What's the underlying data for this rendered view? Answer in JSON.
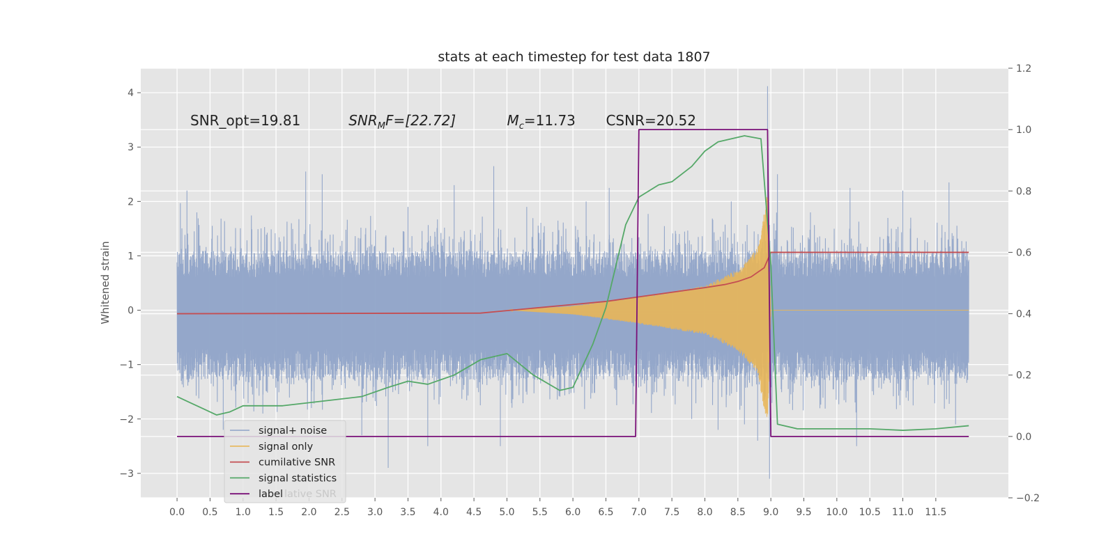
{
  "chart_data": {
    "type": "line",
    "title": "stats at each timestep for test data 1807",
    "ylabel": "Whitened strain",
    "xlim": [
      -0.55,
      12.6
    ],
    "ylim": [
      -3.45,
      4.45
    ],
    "y2lim": [
      -0.2,
      1.2
    ],
    "x_ticks": [
      "0.0",
      "0.5",
      "1.0",
      "1.5",
      "2.0",
      "2.5",
      "3.0",
      "3.5",
      "4.0",
      "4.5",
      "5.0",
      "5.5",
      "6.0",
      "6.5",
      "7.0",
      "7.5",
      "8.0",
      "8.5",
      "9.0",
      "9.5",
      "10.0",
      "10.5",
      "11.0",
      "11.5"
    ],
    "y_ticks": [
      -3,
      -2,
      -1,
      0,
      1,
      2,
      3,
      4
    ],
    "y_tick_labels": [
      "−3",
      "−2",
      "−1",
      "0",
      "1",
      "2",
      "3",
      "4"
    ],
    "y2_ticks": [
      -0.2,
      0.0,
      0.2,
      0.4,
      0.6,
      0.8,
      1.0,
      1.2
    ],
    "y2_tick_labels": [
      "−0.2",
      "0.0",
      "0.2",
      "0.4",
      "0.6",
      "0.8",
      "1.0",
      "1.2"
    ],
    "grid": true,
    "legend_position": "bottom-left",
    "annotations": [
      {
        "text": "SNR_opt=19.81",
        "x": 0.2,
        "y": 3.4
      },
      {
        "text": "SNR",
        "sub": "M",
        "suffix": "F=[22.72]",
        "x": 2.6,
        "y": 3.4,
        "italic": true
      },
      {
        "text": "M",
        "sub": "c",
        "suffix": "=11.73",
        "x": 5.0,
        "y": 3.4,
        "italic": true
      },
      {
        "text": "CSNR=20.52",
        "x": 6.5,
        "y": 3.4
      }
    ],
    "series": [
      {
        "name": "signal+ noise",
        "axis": "left",
        "color": "#8fa3c8",
        "style": "noise",
        "x_range": [
          0.0,
          12.0
        ],
        "typical_range": [
          -1.3,
          1.1
        ],
        "peaks": [
          [
            0.05,
            1.97
          ],
          [
            0.15,
            2.2
          ],
          [
            0.3,
            1.8
          ],
          [
            0.7,
            -2.2
          ],
          [
            1.3,
            -1.9
          ],
          [
            1.95,
            2.55
          ],
          [
            2.2,
            2.5
          ],
          [
            2.8,
            -2.3
          ],
          [
            3.2,
            -2.9
          ],
          [
            3.5,
            1.9
          ],
          [
            3.8,
            -2.5
          ],
          [
            4.2,
            2.3
          ],
          [
            4.8,
            2.65
          ],
          [
            4.9,
            -2.5
          ],
          [
            5.3,
            1.9
          ],
          [
            6.2,
            2.0
          ],
          [
            6.55,
            2.25
          ],
          [
            7.8,
            -2.0
          ],
          [
            8.2,
            -2.2
          ],
          [
            8.4,
            2.0
          ],
          [
            8.6,
            -2.1
          ],
          [
            8.8,
            -2.4
          ],
          [
            8.95,
            4.12
          ],
          [
            8.98,
            -3.1
          ],
          [
            9.1,
            2.5
          ],
          [
            9.6,
            1.8
          ],
          [
            10.2,
            2.25
          ],
          [
            10.3,
            -2.5
          ],
          [
            11.0,
            2.2
          ],
          [
            11.7,
            2.35
          ],
          [
            11.8,
            -2.1
          ]
        ]
      },
      {
        "name": "signal only",
        "axis": "left",
        "color": "#e8b658",
        "style": "chirp",
        "x_range": [
          5.0,
          9.0
        ],
        "amplitude": [
          [
            5.0,
            0.0
          ],
          [
            6.0,
            0.08
          ],
          [
            7.0,
            0.25
          ],
          [
            8.0,
            0.45
          ],
          [
            8.5,
            0.75
          ],
          [
            8.8,
            1.15
          ],
          [
            8.95,
            2.2
          ],
          [
            9.0,
            0.0
          ]
        ]
      },
      {
        "name": "cumilative SNR",
        "axis": "right",
        "color": "#c44e52",
        "x": [
          0.0,
          4.6,
          5.0,
          6.0,
          6.5,
          7.0,
          7.5,
          8.0,
          8.3,
          8.5,
          8.7,
          8.9,
          9.0,
          12.0
        ],
        "values": [
          0.4,
          0.402,
          0.41,
          0.43,
          0.44,
          0.455,
          0.47,
          0.485,
          0.495,
          0.505,
          0.52,
          0.55,
          0.6,
          0.6
        ]
      },
      {
        "name": "signal statistics",
        "axis": "right",
        "color": "#55a868",
        "x": [
          0.0,
          0.2,
          0.4,
          0.6,
          0.8,
          1.0,
          1.3,
          1.6,
          2.0,
          2.4,
          2.8,
          3.2,
          3.5,
          3.8,
          4.2,
          4.6,
          5.0,
          5.4,
          5.8,
          6.0,
          6.3,
          6.5,
          6.8,
          7.0,
          7.3,
          7.5,
          7.8,
          8.0,
          8.2,
          8.6,
          8.85,
          9.0,
          9.1,
          9.4,
          10.0,
          10.5,
          11.0,
          11.5,
          12.0
        ],
        "values": [
          0.13,
          0.11,
          0.09,
          0.07,
          0.08,
          0.1,
          0.1,
          0.1,
          0.11,
          0.12,
          0.13,
          0.16,
          0.18,
          0.17,
          0.2,
          0.25,
          0.27,
          0.2,
          0.15,
          0.16,
          0.3,
          0.42,
          0.69,
          0.78,
          0.82,
          0.83,
          0.88,
          0.93,
          0.96,
          0.98,
          0.97,
          0.56,
          0.04,
          0.025,
          0.025,
          0.025,
          0.02,
          0.025,
          0.035
        ]
      },
      {
        "name": "label",
        "axis": "right",
        "color": "#7a1078",
        "x": [
          0.0,
          6.95,
          7.0,
          8.95,
          9.0,
          12.0
        ],
        "values": [
          0.0,
          0.0,
          1.0,
          1.0,
          0.0,
          0.0
        ]
      }
    ],
    "legend_ghost_text": "lative SNR"
  }
}
